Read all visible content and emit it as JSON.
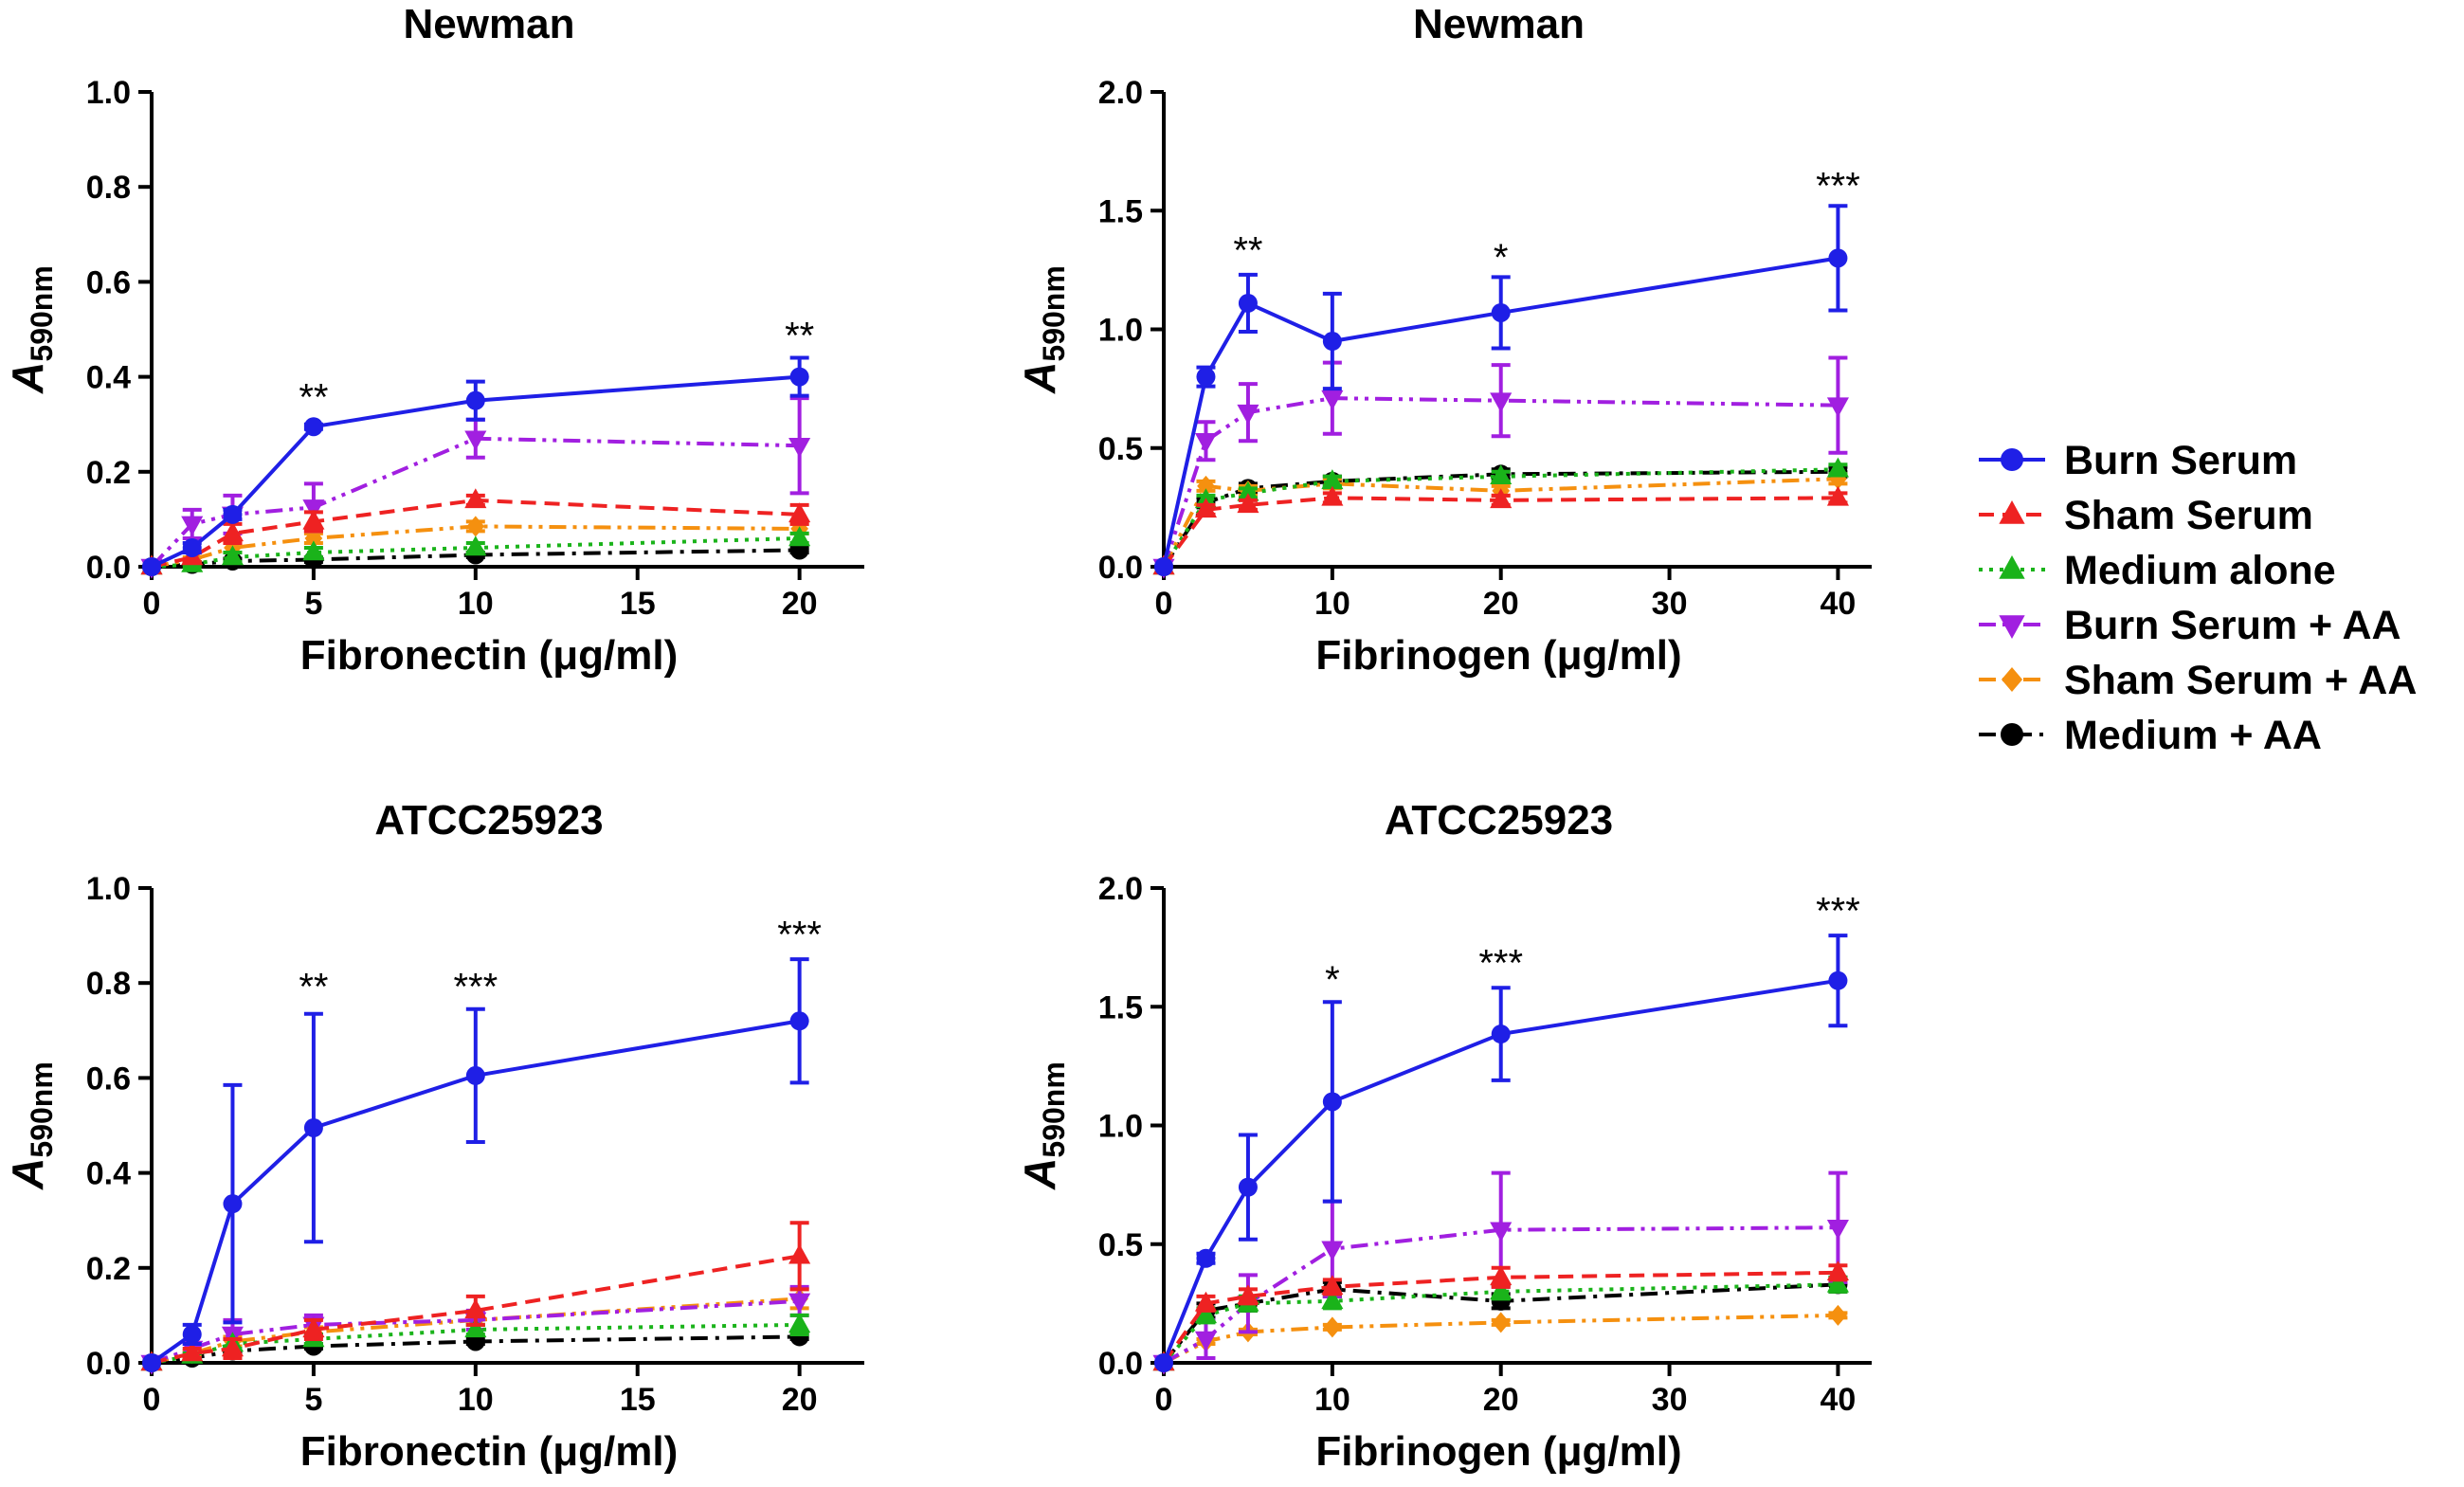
{
  "legend": {
    "position": "right",
    "entries": [
      {
        "label": "Burn Serum",
        "color": "#1f1fe6",
        "marker": "circle",
        "dash": "solid"
      },
      {
        "label": "Sham Serum",
        "color": "#ee2222",
        "marker": "triangle-up",
        "dash": "dashed"
      },
      {
        "label": "Medium alone",
        "color": "#1ab31a",
        "marker": "triangle-up",
        "dash": "dotted"
      },
      {
        "label": "Burn Serum + AA",
        "color": "#a11fe0",
        "marker": "triangle-down",
        "dash": "dash-dot-dot"
      },
      {
        "label": "Sham Serum + AA",
        "color": "#f5900f",
        "marker": "diamond",
        "dash": "dash-dot-dot"
      },
      {
        "label": "Medium + AA",
        "color": "#000000",
        "marker": "circle",
        "dash": "dash-dot"
      }
    ]
  },
  "chart_data": [
    {
      "type": "line",
      "title": "Newman",
      "xlabel": "Fibronectin (μg/ml)",
      "ylabel_main": "A",
      "ylabel_sub": "590nm",
      "xlim": [
        0,
        22
      ],
      "ylim": [
        0,
        1.0
      ],
      "xticks": [
        0,
        5,
        10,
        15,
        20
      ],
      "xtick_labels": [
        "0",
        "5",
        "10",
        "15",
        "20"
      ],
      "yticks": [
        0,
        0.2,
        0.4,
        0.6,
        0.8,
        1.0
      ],
      "ytick_labels": [
        "0.0",
        "0.2",
        "0.4",
        "0.6",
        "0.8",
        "1.0"
      ],
      "x": [
        0,
        1.25,
        2.5,
        5,
        10,
        20
      ],
      "series": [
        {
          "name": "Burn Serum",
          "values": [
            0,
            0.04,
            0.11,
            0.295,
            0.35,
            0.4
          ],
          "errors": [
            0,
            0.01,
            0.01,
            0.005,
            0.04,
            0.04
          ]
        },
        {
          "name": "Sham Serum",
          "values": [
            0,
            0.02,
            0.07,
            0.095,
            0.14,
            0.11
          ],
          "errors": [
            0,
            0.01,
            0.02,
            0.02,
            0.01,
            0.02
          ]
        },
        {
          "name": "Medium alone",
          "values": [
            0,
            0.005,
            0.02,
            0.03,
            0.04,
            0.06
          ],
          "errors": [
            0,
            0.005,
            0.01,
            0.01,
            0.01,
            0.01
          ]
        },
        {
          "name": "Burn Serum + AA",
          "values": [
            0,
            0.09,
            0.11,
            0.125,
            0.27,
            0.255
          ],
          "errors": [
            0,
            0.03,
            0.04,
            0.05,
            0.04,
            0.1
          ]
        },
        {
          "name": "Sham Serum + AA",
          "values": [
            0,
            0.015,
            0.04,
            0.06,
            0.085,
            0.08
          ],
          "errors": [
            0,
            0.005,
            0.01,
            0.01,
            0.01,
            0.01
          ]
        },
        {
          "name": "Medium + AA",
          "values": [
            0,
            0.005,
            0.012,
            0.015,
            0.025,
            0.035
          ],
          "errors": [
            0,
            0.003,
            0.005,
            0.005,
            0.005,
            0.005
          ]
        }
      ],
      "annotations": [
        {
          "x": 5,
          "y": 0.33,
          "text": "**"
        },
        {
          "x": 20,
          "y": 0.46,
          "text": "**"
        }
      ]
    },
    {
      "type": "line",
      "title": "Newman",
      "xlabel": "Fibrinogen (μg/ml)",
      "ylabel_main": "A",
      "ylabel_sub": "590nm",
      "xlim": [
        0,
        42
      ],
      "ylim": [
        0,
        2.0
      ],
      "xticks": [
        0,
        10,
        20,
        30,
        40
      ],
      "xtick_labels": [
        "0",
        "10",
        "20",
        "30",
        "40"
      ],
      "yticks": [
        0,
        0.5,
        1.0,
        1.5,
        2.0
      ],
      "ytick_labels": [
        "0.0",
        "0.5",
        "1.0",
        "1.5",
        "2.0"
      ],
      "x": [
        0,
        2.5,
        5,
        10,
        20,
        40
      ],
      "series": [
        {
          "name": "Burn Serum",
          "values": [
            0,
            0.8,
            1.11,
            0.95,
            1.07,
            1.3
          ],
          "errors": [
            0,
            0.04,
            0.12,
            0.2,
            0.15,
            0.22
          ]
        },
        {
          "name": "Sham Serum",
          "values": [
            0,
            0.24,
            0.26,
            0.29,
            0.28,
            0.29
          ],
          "errors": [
            0,
            0.02,
            0.02,
            0.02,
            0.02,
            0.02
          ]
        },
        {
          "name": "Medium alone",
          "values": [
            0,
            0.28,
            0.31,
            0.36,
            0.38,
            0.41
          ],
          "errors": [
            0,
            0.02,
            0.02,
            0.02,
            0.02,
            0.02
          ]
        },
        {
          "name": "Burn Serum + AA",
          "values": [
            0,
            0.53,
            0.65,
            0.71,
            0.7,
            0.68
          ],
          "errors": [
            0,
            0.08,
            0.12,
            0.15,
            0.15,
            0.2
          ]
        },
        {
          "name": "Sham Serum + AA",
          "values": [
            0,
            0.34,
            0.32,
            0.35,
            0.32,
            0.37
          ],
          "errors": [
            0,
            0.02,
            0.02,
            0.02,
            0.02,
            0.02
          ]
        },
        {
          "name": "Medium + AA",
          "values": [
            0,
            0.27,
            0.33,
            0.36,
            0.39,
            0.4
          ],
          "errors": [
            0,
            0.02,
            0.02,
            0.02,
            0.02,
            0.02
          ]
        }
      ],
      "annotations": [
        {
          "x": 5,
          "y": 1.28,
          "text": "**"
        },
        {
          "x": 20,
          "y": 1.25,
          "text": "*"
        },
        {
          "x": 40,
          "y": 1.55,
          "text": "***"
        }
      ]
    },
    {
      "type": "line",
      "title": "ATCC25923",
      "xlabel": "Fibronectin (μg/ml)",
      "ylabel_main": "A",
      "ylabel_sub": "590nm",
      "xlim": [
        0,
        22
      ],
      "ylim": [
        0,
        1.0
      ],
      "xticks": [
        0,
        5,
        10,
        15,
        20
      ],
      "xtick_labels": [
        "0",
        "5",
        "10",
        "15",
        "20"
      ],
      "yticks": [
        0,
        0.2,
        0.4,
        0.6,
        0.8,
        1.0
      ],
      "ytick_labels": [
        "0.0",
        "0.2",
        "0.4",
        "0.6",
        "0.8",
        "1.0"
      ],
      "x": [
        0,
        1.25,
        2.5,
        5,
        10,
        20
      ],
      "series": [
        {
          "name": "Burn Serum",
          "values": [
            0,
            0.06,
            0.335,
            0.495,
            0.605,
            0.72
          ],
          "errors": [
            0,
            0.02,
            0.25,
            0.24,
            0.14,
            0.13
          ]
        },
        {
          "name": "Sham Serum",
          "values": [
            0,
            0.02,
            0.03,
            0.07,
            0.11,
            0.225
          ],
          "errors": [
            0,
            0.01,
            0.02,
            0.02,
            0.03,
            0.07
          ]
        },
        {
          "name": "Medium alone",
          "values": [
            0,
            0.015,
            0.04,
            0.05,
            0.07,
            0.08
          ],
          "errors": [
            0,
            0.005,
            0.01,
            0.01,
            0.01,
            0.02
          ]
        },
        {
          "name": "Burn Serum + AA",
          "values": [
            0,
            0.03,
            0.06,
            0.08,
            0.09,
            0.13
          ],
          "errors": [
            0,
            0.01,
            0.03,
            0.02,
            0.02,
            0.03
          ]
        },
        {
          "name": "Sham Serum + AA",
          "values": [
            0,
            0.02,
            0.045,
            0.065,
            0.09,
            0.135
          ],
          "errors": [
            0,
            0.005,
            0.01,
            0.01,
            0.01,
            0.02
          ]
        },
        {
          "name": "Medium + AA",
          "values": [
            0,
            0.01,
            0.025,
            0.035,
            0.045,
            0.055
          ],
          "errors": [
            0,
            0.005,
            0.005,
            0.005,
            0.005,
            0.005
          ]
        }
      ],
      "annotations": [
        {
          "x": 5,
          "y": 0.765,
          "text": "**"
        },
        {
          "x": 10,
          "y": 0.765,
          "text": "***"
        },
        {
          "x": 20,
          "y": 0.875,
          "text": "***"
        }
      ]
    },
    {
      "type": "line",
      "title": "ATCC25923",
      "xlabel": "Fibrinogen (μg/ml)",
      "ylabel_main": "A",
      "ylabel_sub": "590nm",
      "xlim": [
        0,
        42
      ],
      "ylim": [
        0,
        2.0
      ],
      "xticks": [
        0,
        10,
        20,
        30,
        40
      ],
      "xtick_labels": [
        "0",
        "10",
        "20",
        "30",
        "40"
      ],
      "yticks": [
        0,
        0.5,
        1.0,
        1.5,
        2.0
      ],
      "ytick_labels": [
        "0.0",
        "0.5",
        "1.0",
        "1.5",
        "2.0"
      ],
      "x": [
        0,
        2.5,
        5,
        10,
        20,
        40
      ],
      "series": [
        {
          "name": "Burn Serum",
          "values": [
            0,
            0.44,
            0.74,
            1.1,
            1.385,
            1.61
          ],
          "errors": [
            0,
            0.02,
            0.22,
            0.42,
            0.195,
            0.19
          ]
        },
        {
          "name": "Sham Serum",
          "values": [
            0,
            0.25,
            0.28,
            0.32,
            0.36,
            0.38
          ],
          "errors": [
            0,
            0.03,
            0.03,
            0.03,
            0.04,
            0.03
          ]
        },
        {
          "name": "Medium alone",
          "values": [
            0,
            0.2,
            0.25,
            0.26,
            0.3,
            0.33
          ],
          "errors": [
            0,
            0.03,
            0.03,
            0.03,
            0.03,
            0.03
          ]
        },
        {
          "name": "Burn Serum + AA",
          "values": [
            0,
            0.1,
            0.25,
            0.48,
            0.56,
            0.57
          ],
          "errors": [
            0,
            0.08,
            0.12,
            0.2,
            0.24,
            0.23
          ]
        },
        {
          "name": "Sham Serum + AA",
          "values": [
            0,
            0.09,
            0.13,
            0.15,
            0.17,
            0.2
          ],
          "errors": [
            0,
            0.01,
            0.01,
            0.01,
            0.01,
            0.01
          ]
        },
        {
          "name": "Medium + AA",
          "values": [
            0,
            0.22,
            0.25,
            0.31,
            0.26,
            0.33
          ],
          "errors": [
            0,
            0.03,
            0.03,
            0.03,
            0.03,
            0.03
          ]
        }
      ],
      "annotations": [
        {
          "x": 10,
          "y": 1.56,
          "text": "*"
        },
        {
          "x": 20,
          "y": 1.63,
          "text": "***"
        },
        {
          "x": 40,
          "y": 1.85,
          "text": "***"
        }
      ]
    }
  ]
}
